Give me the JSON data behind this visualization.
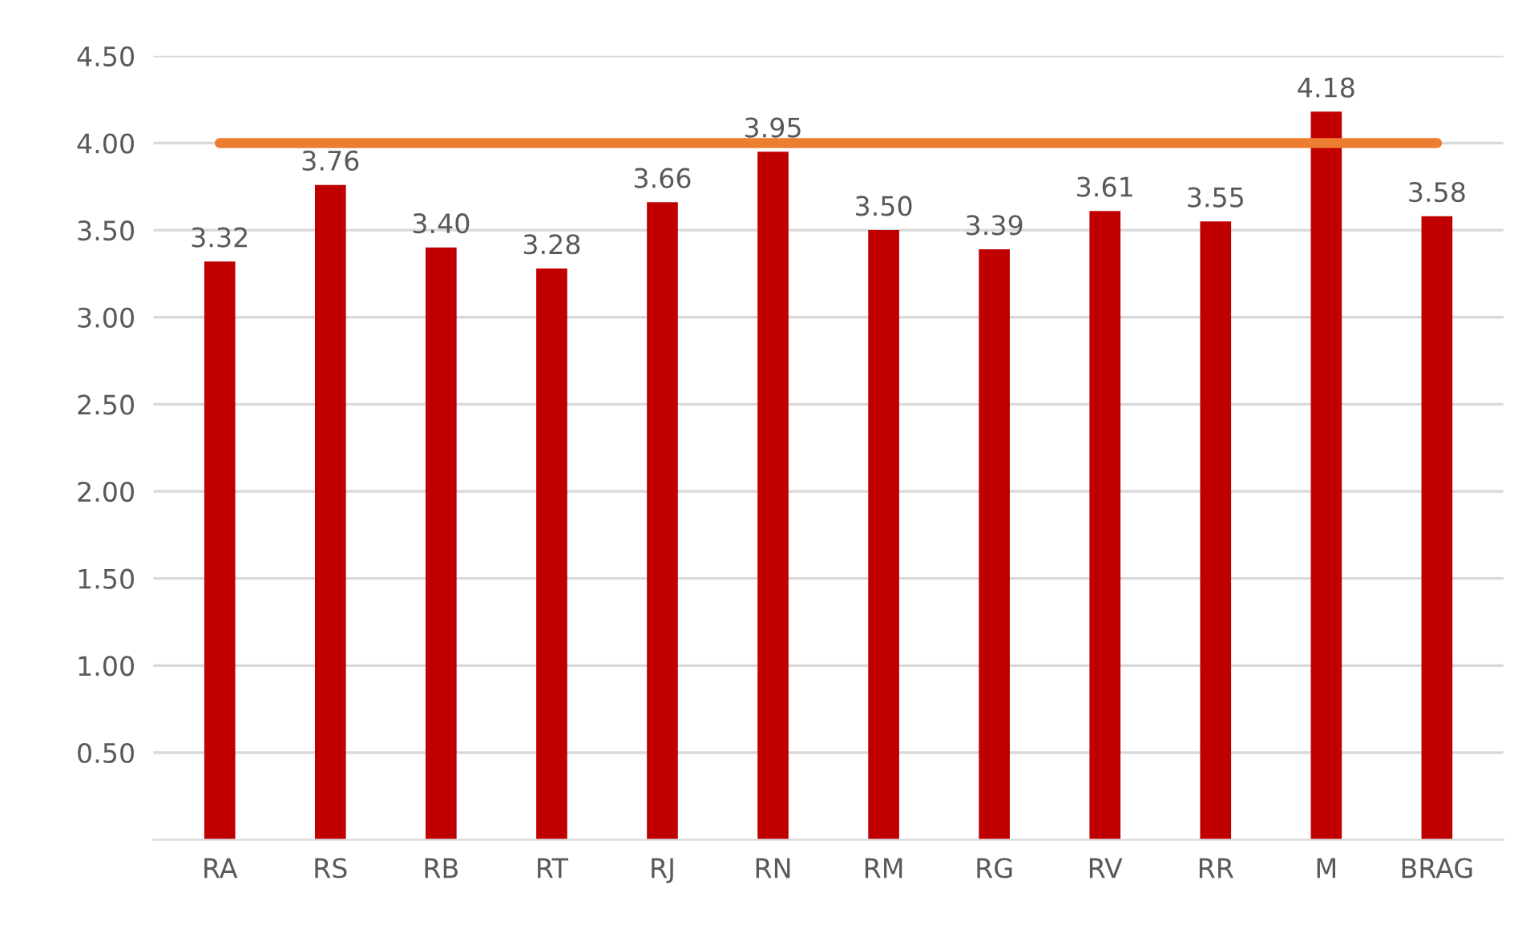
{
  "chart_data": {
    "type": "bar",
    "categories": [
      "RA",
      "RS",
      "RB",
      "RT",
      "RJ",
      "RN",
      "RM",
      "RG",
      "RV",
      "RR",
      "M",
      "BRAG"
    ],
    "series": [
      {
        "color": "#c00000",
        "values": [
          3.32,
          3.76,
          3.4,
          3.28,
          3.66,
          3.95,
          3.5,
          3.39,
          3.61,
          3.55,
          4.18,
          3.58
        ],
        "value_labels": [
          "3.32",
          "3.76",
          "3.40",
          "3.28",
          "3.66",
          "3.95",
          "3.50",
          "3.39",
          "3.61",
          "3.55",
          "4.18",
          "3.58"
        ]
      },
      {
        "type": "line",
        "color": "#ed7d31",
        "values": [
          4,
          4,
          4,
          4,
          4,
          4,
          4,
          4,
          4,
          4,
          4,
          4
        ]
      }
    ],
    "ylim": [
      0,
      4.5
    ],
    "yticks": [
      "0.50",
      "1.00",
      "1.50",
      "2.00",
      "2.50",
      "3.00",
      "3.50",
      "4.00",
      "4.50"
    ],
    "grid": "y",
    "legend": false
  }
}
